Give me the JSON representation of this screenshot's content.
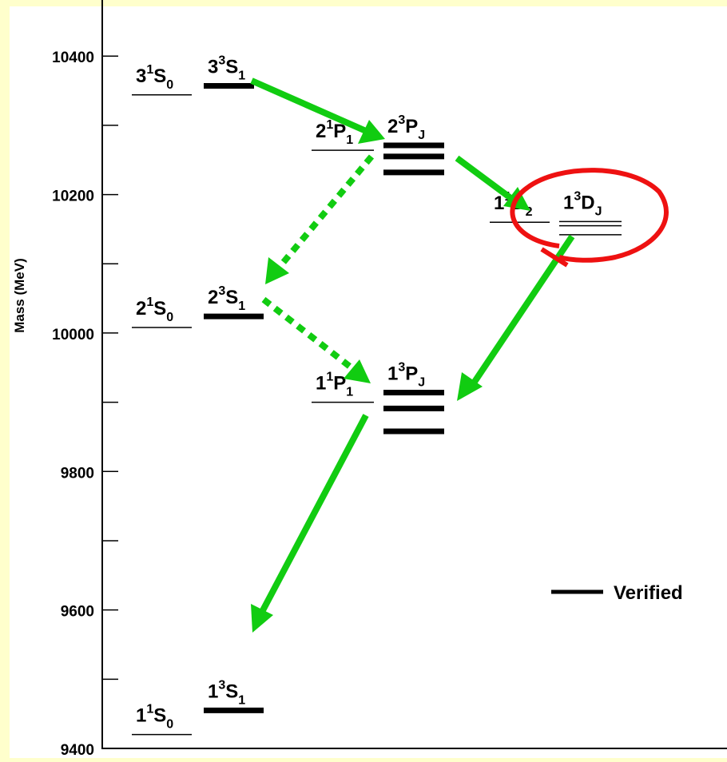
{
  "axis": {
    "label": "Mass (MeV)",
    "ylim": [
      9400,
      10481
    ],
    "yticks": [
      9400,
      9600,
      9800,
      10000,
      10200,
      10400
    ],
    "yminor": [
      9500,
      9700,
      9900,
      10100,
      10300
    ]
  },
  "levels": [
    {
      "n": "3",
      "spin": "1",
      "L": "S",
      "J": "0",
      "mass": [
        10344
      ],
      "verified": false
    },
    {
      "n": "3",
      "spin": "3",
      "L": "S",
      "J": "1",
      "mass": [
        10357
      ],
      "verified": true
    },
    {
      "n": "2",
      "spin": "1",
      "L": "P",
      "J": "1",
      "mass": [
        10264
      ],
      "verified": false
    },
    {
      "n": "2",
      "spin": "3",
      "L": "P",
      "J": "J",
      "mass": [
        10271,
        10255,
        10232
      ],
      "verified": true
    },
    {
      "n": "1",
      "spin": "1",
      "L": "D",
      "J": "2",
      "mass": [
        10160
      ],
      "verified": false
    },
    {
      "n": "1",
      "spin": "3",
      "L": "D",
      "J": "J",
      "mass": [
        10161,
        10155,
        10142
      ],
      "verified": false
    },
    {
      "n": "2",
      "spin": "1",
      "L": "S",
      "J": "0",
      "mass": [
        10008
      ],
      "verified": false
    },
    {
      "n": "2",
      "spin": "3",
      "L": "S",
      "J": "1",
      "mass": [
        10024
      ],
      "verified": true
    },
    {
      "n": "1",
      "spin": "1",
      "L": "P",
      "J": "1",
      "mass": [
        9900
      ],
      "verified": false
    },
    {
      "n": "1",
      "spin": "3",
      "L": "P",
      "J": "J",
      "mass": [
        9914,
        9891,
        9858
      ],
      "verified": true
    },
    {
      "n": "1",
      "spin": "1",
      "L": "S",
      "J": "0",
      "mass": [
        9420
      ],
      "verified": false
    },
    {
      "n": "1",
      "spin": "3",
      "L": "S",
      "J": "1",
      "mass": [
        9455
      ],
      "verified": true
    }
  ],
  "legend": {
    "label": "Verified"
  }
}
